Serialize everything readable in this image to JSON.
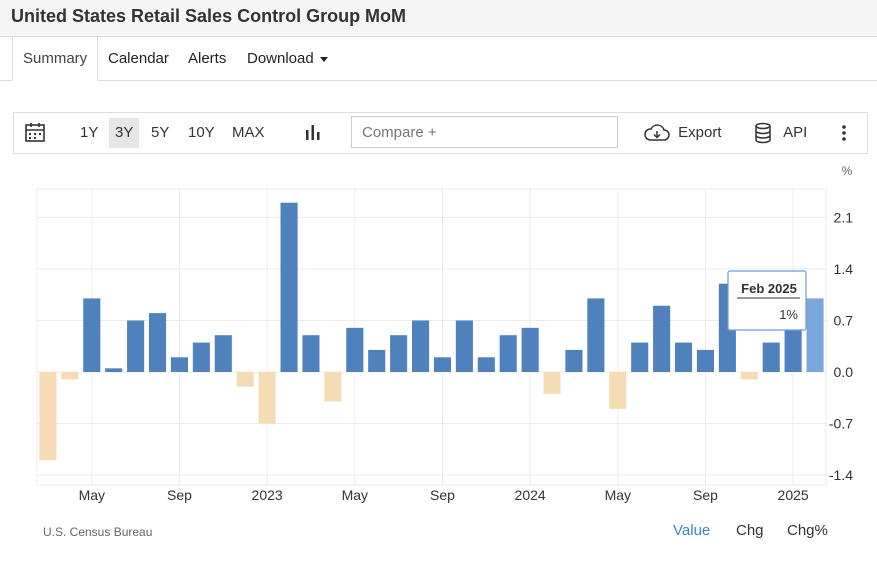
{
  "page": {
    "title": "United States Retail Sales Control Group MoM"
  },
  "tabs": [
    {
      "label": "Summary"
    },
    {
      "label": "Calendar"
    },
    {
      "label": "Alerts"
    },
    {
      "label": "Download"
    }
  ],
  "toolbar": {
    "ranges": [
      "1Y",
      "3Y",
      "5Y",
      "10Y",
      "MAX"
    ],
    "active_range": "3Y",
    "compare_placeholder": "Compare +",
    "export_label": "Export",
    "api_label": "API"
  },
  "tooltip": {
    "date": "Feb 2025",
    "value": "1%"
  },
  "footer": {
    "source": "U.S. Census Bureau",
    "modes": [
      "Value",
      "Chg",
      "Chg%"
    ],
    "active_mode": "Value"
  },
  "colors": {
    "positive": "#4f81bd",
    "negative": "#f5dcb4",
    "highlight": "#7aa7dc",
    "accent": "#3d87c9"
  },
  "chart_data": {
    "type": "bar",
    "unit": "%",
    "categories": [
      "Mar 2022",
      "Apr 2022",
      "May 2022",
      "Jun 2022",
      "Jul 2022",
      "Aug 2022",
      "Sep 2022",
      "Oct 2022",
      "Nov 2022",
      "Dec 2022",
      "Jan 2023",
      "Feb 2023",
      "Mar 2023",
      "Apr 2023",
      "May 2023",
      "Jun 2023",
      "Jul 2023",
      "Aug 2023",
      "Sep 2023",
      "Oct 2023",
      "Nov 2023",
      "Dec 2023",
      "Jan 2024",
      "Feb 2024",
      "Mar 2024",
      "Apr 2024",
      "May 2024",
      "Jun 2024",
      "Jul 2024",
      "Aug 2024",
      "Sep 2024",
      "Oct 2024",
      "Nov 2024",
      "Dec 2024",
      "Jan 2025",
      "Feb 2025"
    ],
    "values": [
      -1.2,
      -0.1,
      1.0,
      0.05,
      0.7,
      0.8,
      0.2,
      0.4,
      0.5,
      -0.2,
      -0.7,
      2.3,
      0.5,
      -0.4,
      0.6,
      0.3,
      0.5,
      0.7,
      0.2,
      0.7,
      0.2,
      0.5,
      0.6,
      -0.3,
      0.3,
      1.0,
      -0.5,
      0.4,
      0.9,
      0.4,
      0.3,
      1.2,
      -0.1,
      0.4,
      0.7,
      1.0
    ],
    "yticks": [
      2.1,
      1.4,
      0.7,
      0.0,
      -0.7,
      -1.4
    ],
    "ytick_labels": [
      "2.1",
      "1.4",
      "0.7",
      "0.0",
      "-0.7",
      "-1.4"
    ],
    "xtick_labels": [
      {
        "label": "May",
        "index": 2
      },
      {
        "label": "Sep",
        "index": 6
      },
      {
        "label": "2023",
        "index": 10
      },
      {
        "label": "May",
        "index": 14
      },
      {
        "label": "Sep",
        "index": 18
      },
      {
        "label": "2024",
        "index": 22
      },
      {
        "label": "May",
        "index": 26
      },
      {
        "label": "Sep",
        "index": 30
      },
      {
        "label": "2025",
        "index": 34
      }
    ],
    "ylim": [
      -1.5,
      2.5
    ],
    "title": "United States Retail Sales Control Group MoM",
    "ylabel": "%",
    "highlight_index": 35
  }
}
